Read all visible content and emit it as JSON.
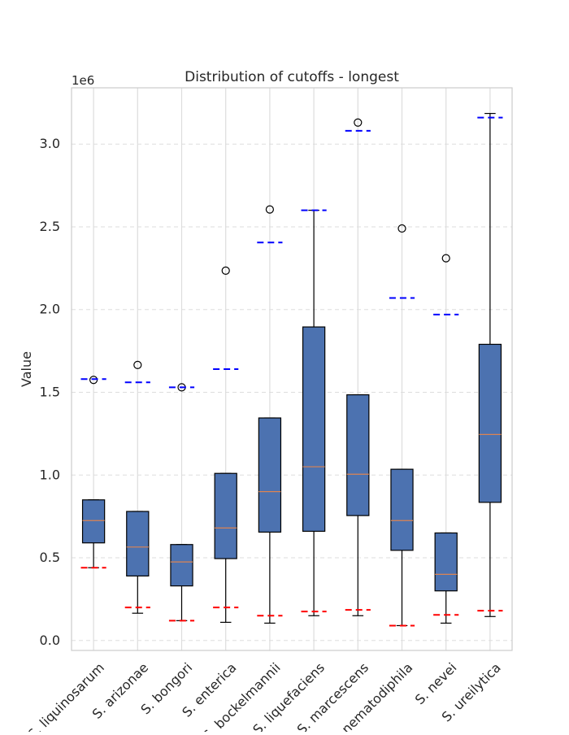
{
  "chart_data": {
    "type": "box",
    "title": "Distribution of cutoffs - longest",
    "xlabel": "",
    "ylabel": "Value",
    "offset_label": "1e6",
    "ylim": [
      -60000,
      3340000
    ],
    "yticks": [
      0,
      500000,
      1000000,
      1500000,
      2000000,
      2500000,
      3000000
    ],
    "ytick_labels": [
      "0.0",
      "0.5",
      "1.0",
      "1.5",
      "2.0",
      "2.5",
      "3.0"
    ],
    "grid": true,
    "categories": [
      "S. liquinosarum",
      "S. arizonae",
      "S. bongori",
      "S. enterica",
      "S. bockelmannii",
      "S. liquefaciens",
      "S. marcescens",
      "S. nematodiphila",
      "S. nevei",
      "S. ureilytica"
    ],
    "boxes": [
      {
        "whislo": 440000,
        "q1": 590000,
        "med": 725000,
        "q3": 850000,
        "whishi": 850000,
        "fliers": [
          1575000
        ],
        "mean_low": 440000,
        "mean_high": 1580000
      },
      {
        "whislo": 165000,
        "q1": 390000,
        "med": 565000,
        "q3": 780000,
        "whishi": 780000,
        "fliers": [
          1665000
        ],
        "mean_low": 200000,
        "mean_high": 1560000
      },
      {
        "whislo": 120000,
        "q1": 330000,
        "med": 475000,
        "q3": 580000,
        "whishi": 580000,
        "fliers": [
          1530000
        ],
        "mean_low": 120000,
        "mean_high": 1530000
      },
      {
        "whislo": 110000,
        "q1": 495000,
        "med": 680000,
        "q3": 1010000,
        "whishi": 1010000,
        "fliers": [
          2235000
        ],
        "mean_low": 200000,
        "mean_high": 1640000
      },
      {
        "whislo": 105000,
        "q1": 655000,
        "med": 900000,
        "q3": 1345000,
        "whishi": 1345000,
        "fliers": [
          2605000
        ],
        "mean_low": 150000,
        "mean_high": 2405000
      },
      {
        "whislo": 150000,
        "q1": 660000,
        "med": 1050000,
        "q3": 1895000,
        "whishi": 2600000,
        "fliers": [],
        "mean_low": 175000,
        "mean_high": 2600000
      },
      {
        "whislo": 150000,
        "q1": 755000,
        "med": 1005000,
        "q3": 1485000,
        "whishi": 1485000,
        "fliers": [
          3130000
        ],
        "mean_low": 185000,
        "mean_high": 3080000
      },
      {
        "whislo": 90000,
        "q1": 545000,
        "med": 725000,
        "q3": 1035000,
        "whishi": 1035000,
        "fliers": [
          2490000
        ],
        "mean_low": 90000,
        "mean_high": 2070000
      },
      {
        "whislo": 105000,
        "q1": 300000,
        "med": 400000,
        "q3": 650000,
        "whishi": 650000,
        "fliers": [
          2310000
        ],
        "mean_low": 155000,
        "mean_high": 1970000
      },
      {
        "whislo": 145000,
        "q1": 835000,
        "med": 1245000,
        "q3": 1790000,
        "whishi": 3185000,
        "fliers": [],
        "mean_low": 180000,
        "mean_high": 3160000
      }
    ],
    "colors": {
      "box_fill": "#4c72b0",
      "box_edge": "#000000",
      "median": "#dd8452",
      "whisker": "#000000",
      "grid": "#dddddd",
      "axes_edge": "#cccccc",
      "low_line": "#ff0000",
      "high_line": "#0000ff"
    }
  }
}
